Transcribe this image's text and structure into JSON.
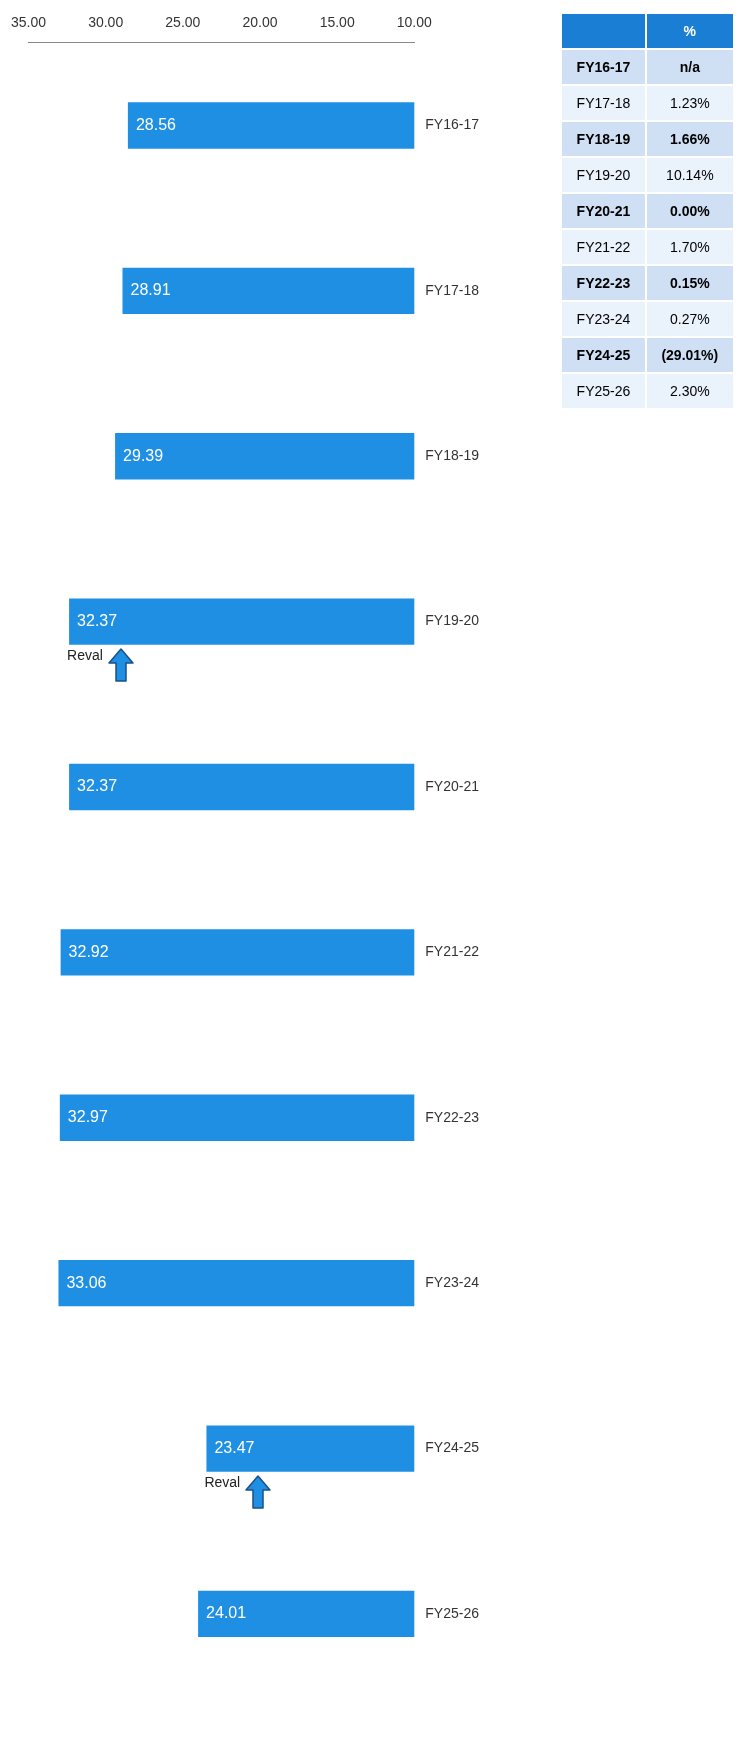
{
  "chart_data": [
    {
      "type": "bar",
      "orientation": "horizontal",
      "categories": [
        "FY16-17",
        "FY17-18",
        "FY18-19",
        "FY19-20",
        "FY20-21",
        "FY21-22",
        "FY22-23",
        "FY23-24",
        "FY24-25",
        "FY25-26"
      ],
      "values": [
        28.56,
        28.91,
        29.39,
        32.37,
        32.37,
        32.92,
        32.97,
        33.06,
        23.47,
        24.01
      ],
      "color": "#1e8fe3",
      "xlim": [
        35,
        10
      ],
      "xticks": [
        {
          "value": 35,
          "label": "35.00"
        },
        {
          "value": 30,
          "label": "30.00"
        },
        {
          "value": 25,
          "label": "25.00"
        },
        {
          "value": 20,
          "label": "20.00"
        },
        {
          "value": 15,
          "label": "15.00"
        },
        {
          "value": 10,
          "label": "10.00"
        }
      ],
      "data_labels": true,
      "grid": false,
      "legend": false,
      "annotations": [
        {
          "text": "Reval",
          "x": 32.37,
          "y": "FY19-20"
        },
        {
          "text": "Reval",
          "x": 23.47,
          "y": "FY24-25"
        }
      ]
    },
    {
      "type": "other",
      "title": "%",
      "categories": [
        "FY16-17",
        "FY17-18",
        "FY18-19",
        "FY19-20",
        "FY20-21",
        "FY21-22",
        "FY22-23",
        "FY23-24",
        "FY24-25",
        "FY25-26"
      ],
      "values": [
        null,
        1.23,
        1.66,
        10.14,
        0.0,
        1.7,
        0.15,
        0.27,
        -29.01,
        2.3
      ],
      "value_labels": [
        "n/a",
        "1.23%",
        "1.66%",
        "10.14%",
        "0.00%",
        "1.70%",
        "0.15%",
        "0.27%",
        "(29.01%)",
        "2.30%"
      ]
    }
  ]
}
